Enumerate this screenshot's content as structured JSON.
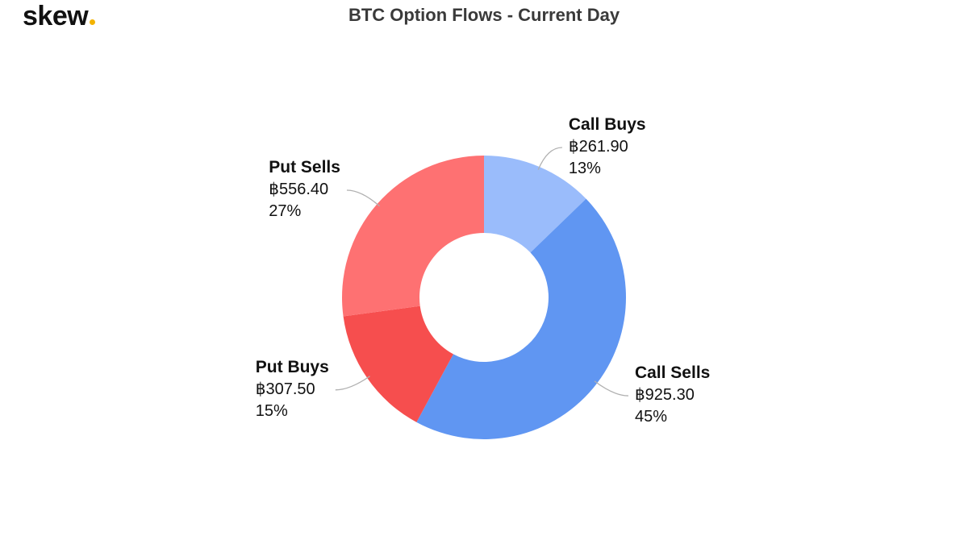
{
  "brand": {
    "name": "skew",
    "accent_color": "#f3b300"
  },
  "chart_data": {
    "type": "pie",
    "variant": "donut",
    "title": "BTC Option Flows - Current Day",
    "currency_symbol": "฿",
    "slices": [
      {
        "label": "Call Buys",
        "value": 261.9,
        "value_text": "฿261.90",
        "percent_text": "13%",
        "color": "#9abcfb"
      },
      {
        "label": "Call Sells",
        "value": 925.3,
        "value_text": "฿925.30",
        "percent_text": "45%",
        "color": "#6096f2"
      },
      {
        "label": "Put Buys",
        "value": 307.5,
        "value_text": "฿307.50",
        "percent_text": "15%",
        "color": "#f64e4e"
      },
      {
        "label": "Put Sells",
        "value": 556.4,
        "value_text": "฿556.40",
        "percent_text": "27%",
        "color": "#fe7172"
      }
    ],
    "start_angle": "top",
    "direction": "clockwise",
    "legend": "none",
    "data_labels": "outside with connector lines"
  }
}
